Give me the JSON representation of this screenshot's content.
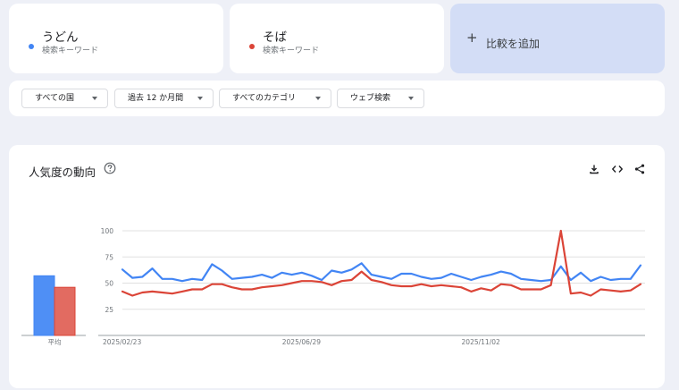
{
  "terms": [
    {
      "name": "うどん",
      "type": "検索キーワード",
      "color": "#4285f4"
    },
    {
      "name": "そば",
      "type": "検索キーワード",
      "color": "#db4437"
    }
  ],
  "add_compare": {
    "label": "比較を追加"
  },
  "filters": [
    {
      "label": "すべての国"
    },
    {
      "label": "過去 12 か月間"
    },
    {
      "label": "すべてのカテゴリ"
    },
    {
      "label": "ウェブ検索"
    }
  ],
  "panel": {
    "title": "人気度の動向"
  },
  "chart_data": {
    "type": "line",
    "x": [
      "2025/02/23",
      "2025/03/02",
      "2025/03/09",
      "2025/03/16",
      "2025/03/23",
      "2025/03/30",
      "2025/04/06",
      "2025/04/13",
      "2025/04/20",
      "2025/04/27",
      "2025/05/04",
      "2025/05/11",
      "2025/05/18",
      "2025/05/25",
      "2025/06/01",
      "2025/06/08",
      "2025/06/15",
      "2025/06/22",
      "2025/06/29",
      "2025/07/06",
      "2025/07/13",
      "2025/07/20",
      "2025/07/27",
      "2025/08/03",
      "2025/08/10",
      "2025/08/17",
      "2025/08/24",
      "2025/08/31",
      "2025/09/07",
      "2025/09/14",
      "2025/09/21",
      "2025/09/28",
      "2025/10/05",
      "2025/10/12",
      "2025/10/19",
      "2025/10/26",
      "2025/11/02",
      "2025/11/09",
      "2025/11/16",
      "2025/11/23",
      "2025/11/30",
      "2025/12/07",
      "2025/12/14",
      "2025/12/21",
      "2025/12/28",
      "2026/01/04",
      "2026/01/11",
      "2026/01/18",
      "2026/01/25",
      "2026/02/01",
      "2026/02/08",
      "2026/02/15",
      "2026/02/22"
    ],
    "series": [
      {
        "name": "うどん",
        "color": "#4285f4",
        "values": [
          63,
          55,
          56,
          64,
          54,
          54,
          52,
          54,
          53,
          68,
          62,
          54,
          55,
          56,
          58,
          55,
          60,
          58,
          60,
          57,
          53,
          62,
          60,
          63,
          69,
          58,
          56,
          54,
          59,
          59,
          56,
          54,
          55,
          59,
          56,
          53,
          56,
          58,
          61,
          59,
          54,
          53,
          52,
          53,
          66,
          53,
          60,
          52,
          56,
          53,
          54,
          54,
          67
        ]
      },
      {
        "name": "そば",
        "color": "#db4437",
        "values": [
          42,
          38,
          41,
          42,
          41,
          40,
          42,
          44,
          44,
          49,
          49,
          46,
          44,
          44,
          46,
          47,
          48,
          50,
          52,
          52,
          51,
          48,
          52,
          53,
          61,
          53,
          51,
          48,
          47,
          47,
          49,
          47,
          48,
          47,
          46,
          42,
          45,
          43,
          49,
          48,
          44,
          44,
          44,
          48,
          100,
          40,
          41,
          38,
          44,
          43,
          42,
          43,
          49
        ]
      }
    ],
    "averages": [
      {
        "series": "うどん",
        "value": 57
      },
      {
        "series": "そば",
        "value": 46
      }
    ],
    "average_label": "平均",
    "yticks": [
      25,
      50,
      75,
      100
    ],
    "ylim": [
      0,
      100
    ],
    "xtick_labels": [
      {
        "label": "2025/02/23",
        "index": 0
      },
      {
        "label": "2025/06/29",
        "index": 18
      },
      {
        "label": "2025/11/02",
        "index": 36
      }
    ],
    "grid": true,
    "legend": "none"
  }
}
